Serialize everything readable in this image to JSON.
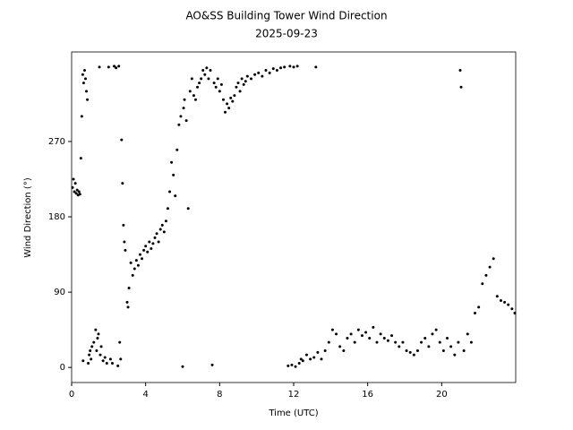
{
  "chart_data": {
    "type": "scatter",
    "title": "AO&SS Building Tower Wind Direction",
    "subtitle": "2025-09-23",
    "x_label": "Time (UTC)",
    "y_label": "Wind Direction (°)",
    "color": "#000000",
    "grid": false,
    "xlim": [
      0,
      24
    ],
    "xticks": [
      0,
      4,
      8,
      12,
      16,
      20
    ],
    "ylim": [
      -18,
      377
    ],
    "yticks": [
      0,
      90,
      180,
      270
    ],
    "x": [
      0.05,
      0.1,
      0.15,
      0.2,
      0.25,
      0.3,
      0.35,
      0.4,
      0.45,
      0.5,
      0.55,
      0.6,
      0.62,
      0.65,
      0.7,
      0.75,
      0.8,
      0.85,
      0.9,
      0.95,
      1.0,
      1.05,
      1.1,
      1.2,
      1.3,
      1.35,
      1.4,
      1.45,
      1.5,
      1.55,
      1.6,
      1.7,
      1.8,
      1.9,
      2.0,
      2.1,
      2.2,
      2.3,
      2.4,
      2.5,
      2.55,
      2.6,
      2.65,
      2.7,
      2.75,
      2.8,
      2.85,
      2.9,
      3.0,
      3.05,
      3.1,
      3.2,
      3.3,
      3.4,
      3.5,
      3.6,
      3.7,
      3.8,
      3.9,
      4.0,
      4.1,
      4.2,
      4.3,
      4.4,
      4.5,
      4.6,
      4.7,
      4.8,
      4.9,
      5.0,
      5.1,
      5.2,
      5.3,
      5.4,
      5.5,
      5.6,
      5.7,
      5.8,
      5.9,
      6.0,
      6.05,
      6.1,
      6.2,
      6.3,
      6.4,
      6.5,
      6.6,
      6.7,
      6.8,
      6.9,
      7.0,
      7.1,
      7.2,
      7.3,
      7.4,
      7.5,
      7.6,
      7.7,
      7.8,
      7.9,
      8.0,
      8.1,
      8.2,
      8.3,
      8.4,
      8.5,
      8.6,
      8.7,
      8.8,
      8.9,
      9.0,
      9.1,
      9.2,
      9.3,
      9.4,
      9.5,
      9.7,
      9.9,
      10.1,
      10.3,
      10.5,
      10.7,
      10.9,
      11.1,
      11.3,
      11.5,
      11.7,
      11.8,
      11.9,
      12.0,
      12.1,
      12.2,
      12.3,
      12.4,
      12.5,
      12.7,
      12.9,
      13.1,
      13.2,
      13.3,
      13.5,
      13.7,
      13.9,
      14.1,
      14.3,
      14.5,
      14.7,
      14.9,
      15.1,
      15.3,
      15.5,
      15.7,
      15.9,
      16.1,
      16.3,
      16.5,
      16.7,
      16.9,
      17.1,
      17.3,
      17.5,
      17.7,
      17.9,
      18.1,
      18.3,
      18.5,
      18.7,
      18.9,
      19.1,
      19.3,
      19.5,
      19.7,
      19.9,
      20.1,
      20.3,
      20.5,
      20.7,
      20.9,
      21.0,
      21.05,
      21.2,
      21.4,
      21.6,
      21.8,
      22.0,
      22.2,
      22.4,
      22.6,
      22.8,
      23.0,
      23.2,
      23.4,
      23.6,
      23.8,
      23.95
    ],
    "values": [
      215,
      225,
      210,
      220,
      208,
      212,
      206,
      210,
      207,
      250,
      300,
      350,
      8,
      340,
      355,
      345,
      330,
      320,
      5,
      15,
      20,
      10,
      25,
      30,
      45,
      20,
      35,
      40,
      359,
      15,
      25,
      8,
      12,
      5,
      359,
      10,
      5,
      360,
      358,
      2,
      360,
      30,
      10,
      272,
      220,
      170,
      150,
      140,
      78,
      72,
      95,
      125,
      110,
      118,
      128,
      122,
      135,
      130,
      140,
      145,
      138,
      150,
      142,
      148,
      155,
      160,
      150,
      165,
      170,
      162,
      175,
      190,
      210,
      245,
      230,
      205,
      260,
      290,
      300,
      1,
      310,
      320,
      295,
      190,
      330,
      345,
      325,
      320,
      335,
      340,
      345,
      355,
      350,
      358,
      345,
      355,
      3,
      340,
      335,
      345,
      330,
      338,
      320,
      305,
      315,
      310,
      322,
      318,
      325,
      335,
      340,
      330,
      345,
      338,
      342,
      348,
      345,
      350,
      352,
      348,
      355,
      352,
      357,
      355,
      358,
      359,
      2,
      360,
      3,
      359,
      1,
      360,
      5,
      10,
      8,
      15,
      10,
      12,
      359,
      18,
      10,
      20,
      30,
      45,
      40,
      25,
      20,
      35,
      40,
      30,
      45,
      38,
      42,
      35,
      48,
      30,
      40,
      35,
      32,
      38,
      30,
      25,
      30,
      20,
      18,
      15,
      20,
      30,
      35,
      25,
      40,
      45,
      30,
      20,
      35,
      25,
      15,
      30,
      355,
      335,
      20,
      40,
      30,
      65,
      72,
      100,
      110,
      120,
      130,
      85,
      80,
      78,
      75,
      70,
      65
    ]
  }
}
